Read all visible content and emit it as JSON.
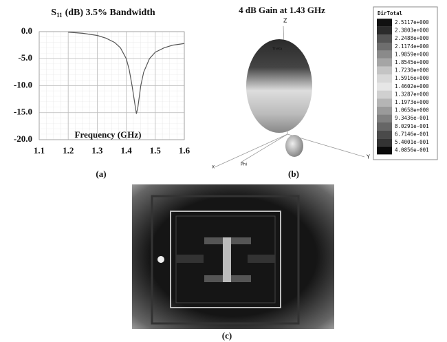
{
  "chart_data": {
    "type": "line",
    "title_parts": [
      "S",
      "11",
      "(dB)  3.5% Bandwidth"
    ],
    "x_label": "Frequency (GHz)",
    "x": [
      1.2,
      1.25,
      1.3,
      1.33,
      1.36,
      1.38,
      1.4,
      1.41,
      1.42,
      1.43,
      1.435,
      1.44,
      1.45,
      1.46,
      1.48,
      1.5,
      1.53,
      1.56,
      1.6
    ],
    "series": [
      {
        "color": "#555555",
        "values": [
          -0.1,
          -0.3,
          -0.7,
          -1.2,
          -2.0,
          -3.0,
          -5.0,
          -7.0,
          -10.0,
          -13.5,
          -15.2,
          -14.0,
          -10.0,
          -7.5,
          -5.0,
          -3.8,
          -3.0,
          -2.5,
          -2.2
        ]
      }
    ],
    "xlim": [
      1.1,
      1.6
    ],
    "xticks": [
      1.1,
      1.2,
      1.3,
      1.4,
      1.5,
      1.6
    ],
    "ylim": [
      -20,
      0
    ],
    "yticks": [
      {
        "value": 0,
        "label": "0.0"
      },
      {
        "value": -5,
        "label": "-5.0"
      },
      {
        "value": -10,
        "label": "-10.0"
      },
      {
        "value": -15,
        "label": "-15.0"
      },
      {
        "value": -20,
        "label": "-20.0"
      }
    ],
    "grid": true
  },
  "panel_labels": [
    "(a)",
    "(b)",
    "(c)"
  ],
  "pattern": {
    "title": "4 dB Gain at 1.43 GHz",
    "axes": [
      "Z",
      "Y",
      "Phi",
      "X",
      "Theta"
    ]
  },
  "colorbar": {
    "title": "DirTotal",
    "labels": [
      "2.5117e+000",
      "2.3803e+000",
      "2.2488e+000",
      "2.1174e+000",
      "1.9859e+000",
      "1.8545e+000",
      "1.7230e+000",
      "1.5916e+000",
      "1.4602e+000",
      "1.3287e+000",
      "1.1973e+000",
      "1.0658e+000",
      "9.3436e-001",
      "8.0291e-001",
      "6.7146e-001",
      "5.4001e-001",
      "4.0856e-001"
    ]
  }
}
